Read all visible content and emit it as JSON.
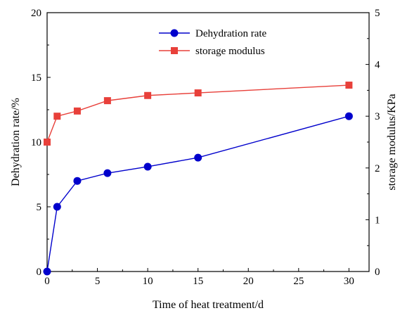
{
  "chart_data": {
    "type": "line",
    "title": "",
    "xlabel": "Time of heat treatment/d",
    "ylabel_left": "Dehydration rate/%",
    "ylabel_right": "storage modulus/KPa",
    "xlim": [
      0,
      32
    ],
    "ylim_left": [
      0,
      20
    ],
    "ylim_right": [
      0,
      5
    ],
    "xticks": [
      "0",
      "5",
      "10",
      "15",
      "20",
      "25",
      "30"
    ],
    "yticks_left": [
      "0",
      "5",
      "10",
      "15",
      "20"
    ],
    "yticks_right": [
      "0",
      "1",
      "2",
      "3",
      "4",
      "5"
    ],
    "grid": false,
    "legend_position": "top-center",
    "series": [
      {
        "name": "Dehydration rate",
        "axis": "left",
        "color": "#0000cc",
        "marker": "circle",
        "x": [
          0,
          1,
          3,
          6,
          10,
          15,
          30
        ],
        "y": [
          0,
          5.0,
          7.0,
          7.6,
          8.1,
          8.8,
          12.0
        ]
      },
      {
        "name": "storage modulus",
        "axis": "right",
        "color": "#e8403a",
        "marker": "square",
        "x": [
          0,
          1,
          3,
          6,
          10,
          15,
          30
        ],
        "y": [
          2.5,
          3.0,
          3.1,
          3.3,
          3.4,
          3.45,
          3.6
        ]
      }
    ]
  }
}
